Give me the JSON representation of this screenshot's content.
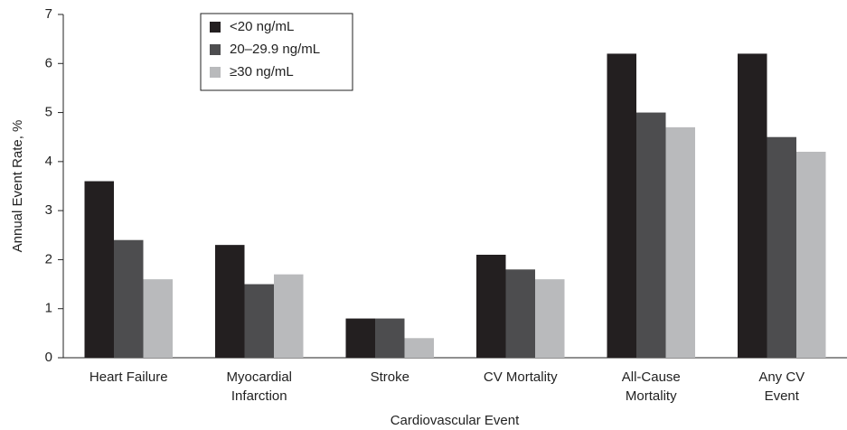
{
  "chart_data": {
    "type": "bar",
    "y_label": "Annual Event Rate, %",
    "x_label": "Cardiovascular Event",
    "categories": [
      "Heart Failure",
      "Myocardial\nInfarction",
      "Stroke",
      "CV Mortality",
      "All-Cause\nMortality",
      "Any CV\nEvent"
    ],
    "series": [
      {
        "name": "<20 ng/mL",
        "color": "#231f20",
        "values": [
          3.6,
          2.3,
          0.8,
          2.1,
          6.2,
          6.2
        ]
      },
      {
        "name": "20–29.9 ng/mL",
        "color": "#4d4d4f",
        "values": [
          2.4,
          1.5,
          0.8,
          1.8,
          5.0,
          4.5
        ]
      },
      {
        "name": "≥30 ng/mL",
        "color": "#b9babc",
        "values": [
          1.6,
          1.7,
          0.4,
          1.6,
          4.7,
          4.2
        ]
      }
    ],
    "ylim": [
      0,
      7
    ],
    "yticks": [
      0,
      1,
      2,
      3,
      4,
      5,
      6,
      7
    ],
    "grid": false,
    "legend": "upper left"
  }
}
